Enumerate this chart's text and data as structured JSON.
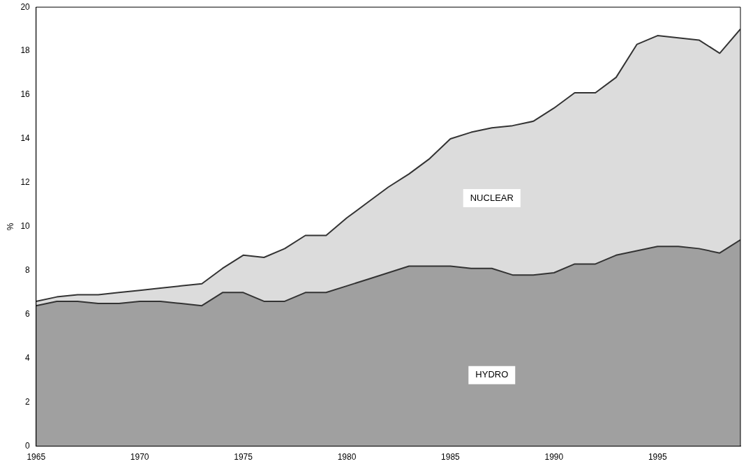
{
  "chart_data": {
    "type": "area",
    "stacked": true,
    "ylabel": "%",
    "x": [
      1965,
      1966,
      1967,
      1968,
      1969,
      1970,
      1971,
      1972,
      1973,
      1974,
      1975,
      1976,
      1977,
      1978,
      1979,
      1980,
      1981,
      1982,
      1983,
      1984,
      1985,
      1986,
      1987,
      1988,
      1989,
      1990,
      1991,
      1992,
      1993,
      1994,
      1995,
      1996,
      1997,
      1998,
      1999
    ],
    "series": [
      {
        "name": "HYDRO",
        "color": "#a0a0a0",
        "values": [
          6.4,
          6.6,
          6.6,
          6.5,
          6.5,
          6.6,
          6.6,
          6.5,
          6.4,
          7.0,
          7.0,
          6.6,
          6.6,
          7.0,
          7.0,
          7.3,
          7.6,
          7.9,
          8.2,
          8.2,
          8.2,
          8.1,
          8.1,
          7.8,
          7.8,
          7.9,
          8.3,
          8.3,
          8.7,
          8.9,
          9.1,
          9.1,
          9.0,
          8.8,
          9.4
        ]
      },
      {
        "name": "NUCLEAR",
        "color": "#dcdcdc",
        "values": [
          0.2,
          0.2,
          0.3,
          0.4,
          0.5,
          0.5,
          0.6,
          0.8,
          1.0,
          1.1,
          1.7,
          2.0,
          2.4,
          2.6,
          2.6,
          3.1,
          3.5,
          3.9,
          4.2,
          4.9,
          5.8,
          6.2,
          6.4,
          6.8,
          7.0,
          7.5,
          7.8,
          7.8,
          8.1,
          9.4,
          9.6,
          9.5,
          9.5,
          9.1,
          9.6
        ]
      }
    ],
    "xlim": [
      1965,
      1999
    ],
    "xticks": [
      1965,
      1970,
      1975,
      1980,
      1985,
      1990,
      1995
    ],
    "ylim": [
      0,
      20
    ],
    "yticks": [
      0,
      2,
      4,
      6,
      8,
      10,
      12,
      14,
      16,
      18,
      20
    ],
    "grid": false,
    "legend": false
  }
}
